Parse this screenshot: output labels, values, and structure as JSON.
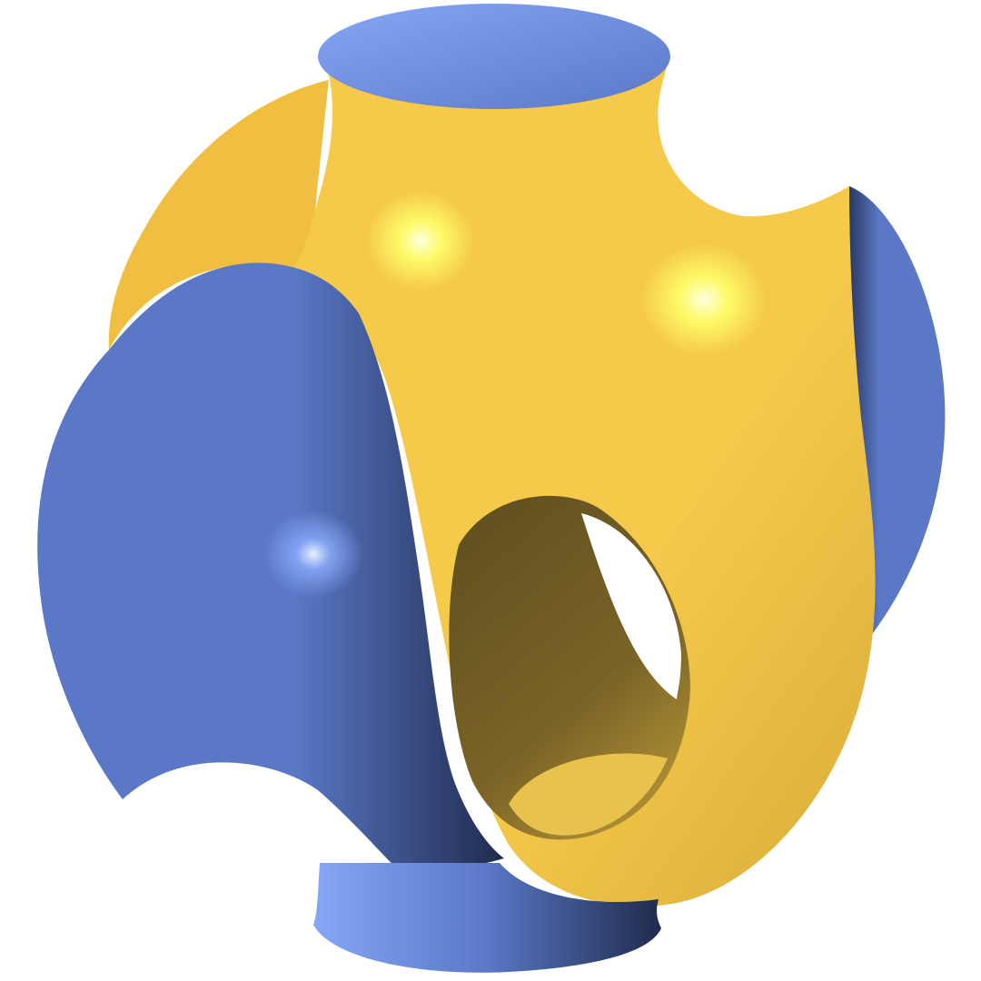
{
  "figure": {
    "colors": {
      "background": "#ffffff",
      "blue_light": "#86a6f6",
      "blue_mid": "#5a78c6",
      "blue_dark": "#1f2b4d",
      "yellow_light": "#ffff6a",
      "yellow_mid": "#f5c94a",
      "yellow_dark": "#5e4d1e",
      "highlight": "#ffffe0"
    }
  }
}
